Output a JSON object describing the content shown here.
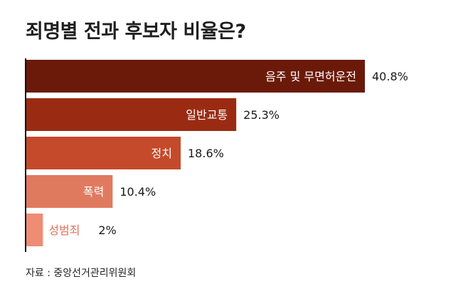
{
  "title": "죄명별 전과 후보자 비율은?",
  "source": "자료 : 중앙선거관리위원회",
  "chart_data": {
    "type": "bar",
    "orientation": "horizontal",
    "title": "죄명별 전과 후보자 비율은?",
    "xlabel": "",
    "ylabel": "",
    "categories": [
      "음주 및 무면허운전",
      "일반교통",
      "정치",
      "폭력",
      "성범죄"
    ],
    "values": [
      40.8,
      25.3,
      18.6,
      10.4,
      2
    ],
    "value_labels": [
      "40.8%",
      "25.3%",
      "18.6%",
      "10.4%",
      "2%"
    ],
    "xlim": [
      0,
      40.8
    ],
    "grid": false,
    "colors": [
      "#6b1a0a",
      "#9a2b12",
      "#c44a2b",
      "#e07a5f",
      "#ee8c74"
    ],
    "category_label_inside": [
      true,
      true,
      true,
      true,
      false
    ],
    "category_label_colors": [
      "#ffffff",
      "#ffffff",
      "#ffffff",
      "#ffffff",
      "#e0705a"
    ]
  }
}
